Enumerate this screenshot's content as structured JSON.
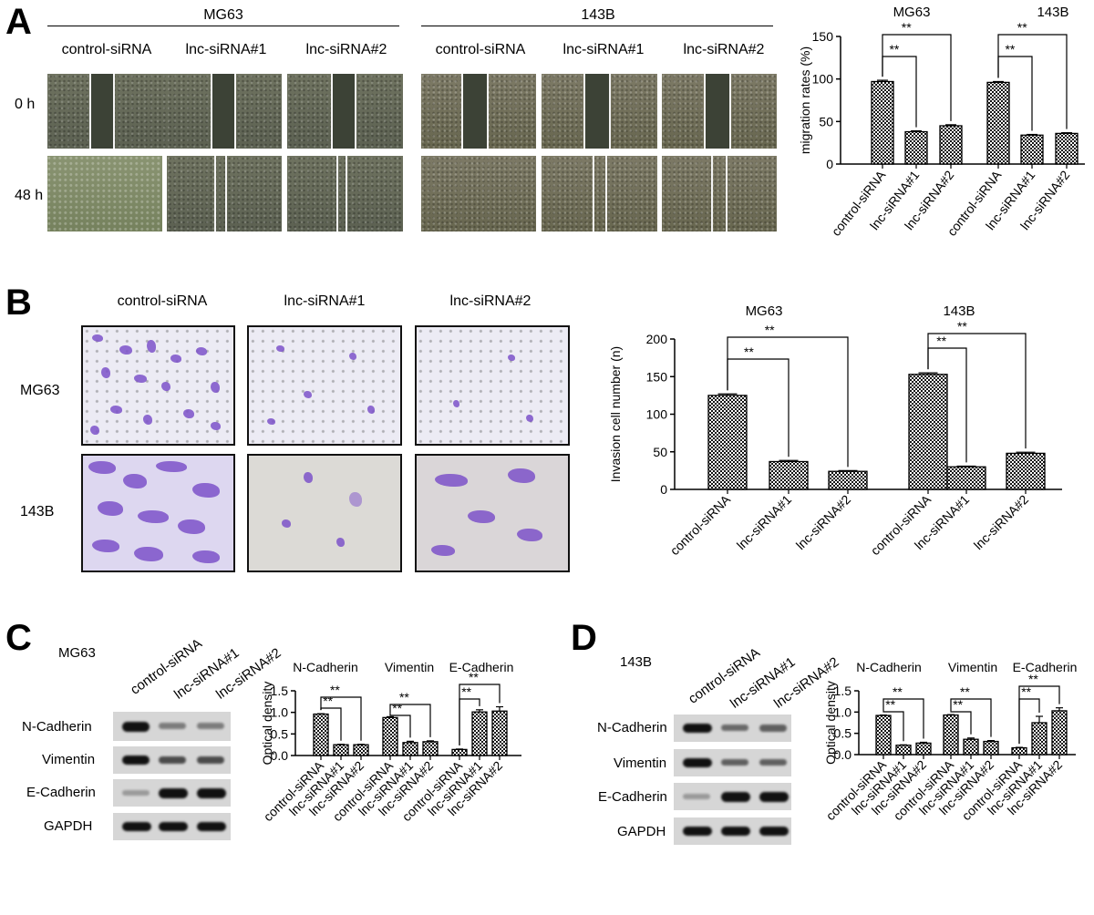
{
  "panels": {
    "a": "A",
    "b": "B",
    "c": "C",
    "d": "D"
  },
  "panelA": {
    "cell_lines": [
      "MG63",
      "143B"
    ],
    "columns": [
      "control-siRNA",
      "lnc-siRNA#1",
      "lnc-siRNA#2",
      "control-siRNA",
      "lnc-siRNA#1",
      "lnc-siRNA#2"
    ],
    "rows": [
      "0 h",
      "48 h"
    ]
  },
  "panelB": {
    "columns": [
      "control-siRNA",
      "lnc-siRNA#1",
      "lnc-siRNA#2"
    ],
    "rows": [
      "MG63",
      "143B"
    ]
  },
  "panelC": {
    "cell_line": "MG63",
    "lanes": [
      "control-siRNA",
      "lnc-siRNA#1",
      "lnc-siRNA#2"
    ],
    "proteins": [
      "N-Cadherin",
      "Vimentin",
      "E-Cadherin",
      "GAPDH"
    ]
  },
  "panelD": {
    "cell_line": "143B",
    "lanes": [
      "control-siRNA",
      "lnc-siRNA#1",
      "lnc-siRNA#2"
    ],
    "proteins": [
      "N-Cadherin",
      "Vimentin",
      "E-Cadherin",
      "GAPDH"
    ]
  },
  "chart_data": [
    {
      "id": "migration",
      "type": "bar",
      "title": "",
      "group_labels": [
        "MG63",
        "143B"
      ],
      "categories": [
        "control-siRNA",
        "lnc-siRNA#1",
        "lnc-siRNA#2",
        "control-siRNA",
        "lnc-siRNA#1",
        "lnc-siRNA#2"
      ],
      "values": [
        97,
        38,
        45,
        96,
        34,
        36
      ],
      "errors": [
        1.5,
        1,
        1.2,
        1,
        0.8,
        0.8
      ],
      "ylabel": "migration rates (%)",
      "ylim": [
        0,
        150
      ],
      "yticks": [
        0,
        50,
        100,
        150
      ],
      "significance": [
        {
          "from": 0,
          "to": 1,
          "label": "**"
        },
        {
          "from": 0,
          "to": 2,
          "label": "**"
        },
        {
          "from": 3,
          "to": 4,
          "label": "**"
        },
        {
          "from": 3,
          "to": 5,
          "label": "**"
        }
      ]
    },
    {
      "id": "invasion",
      "type": "bar",
      "group_labels": [
        "MG63",
        "143B"
      ],
      "categories": [
        "control-siRNA",
        "lnc-siRNA#1",
        "lnc-siRNA#2",
        "control-siRNA",
        "lnc-siRNA#1",
        "lnc-siRNA#2"
      ],
      "values": [
        125,
        37,
        24,
        153,
        30,
        48
      ],
      "errors": [
        2,
        1.5,
        1,
        2,
        1,
        1.5
      ],
      "ylabel": "Invasion cell number (n)",
      "ylim": [
        0,
        200
      ],
      "yticks": [
        0,
        50,
        100,
        150,
        200
      ],
      "significance": [
        {
          "from": 0,
          "to": 1,
          "label": "**"
        },
        {
          "from": 0,
          "to": 2,
          "label": "**"
        },
        {
          "from": 3,
          "to": 4,
          "label": "**"
        },
        {
          "from": 3,
          "to": 5,
          "label": "**"
        }
      ]
    },
    {
      "id": "od_mg63",
      "type": "bar",
      "group_labels": [
        "N-Cadherin",
        "Vimentin",
        "E-Cadherin"
      ],
      "categories": [
        "control-siRNA",
        "lnc-siRNA#1",
        "lnc-siRNA#2",
        "control-siRNA",
        "lnc-siRNA#1",
        "lnc-siRNA#2",
        "control-siRNA",
        "lnc-siRNA#1",
        "lnc-siRNA#2"
      ],
      "values": [
        0.96,
        0.25,
        0.25,
        0.88,
        0.3,
        0.32,
        0.14,
        1.01,
        1.03
      ],
      "errors": [
        0.01,
        0.01,
        0.01,
        0.02,
        0.03,
        0.02,
        0.01,
        0.05,
        0.1
      ],
      "ylabel": "Optical density",
      "ylim": [
        0,
        1.5
      ],
      "yticks": [
        0.0,
        0.5,
        1.0,
        1.5
      ],
      "significance": [
        {
          "from": 0,
          "to": 1,
          "label": "**"
        },
        {
          "from": 0,
          "to": 2,
          "label": "**"
        },
        {
          "from": 3,
          "to": 4,
          "label": "**"
        },
        {
          "from": 3,
          "to": 5,
          "label": "**"
        },
        {
          "from": 6,
          "to": 7,
          "label": "**"
        },
        {
          "from": 6,
          "to": 8,
          "label": "**"
        }
      ]
    },
    {
      "id": "od_143b",
      "type": "bar",
      "group_labels": [
        "N-Cadherin",
        "Vimentin",
        "E-Cadherin"
      ],
      "categories": [
        "control-siRNA",
        "lnc-siRNA#1",
        "lnc-siRNA#2",
        "control-siRNA",
        "lnc-siRNA#1",
        "lnc-siRNA#2",
        "control-siRNA",
        "lnc-siRNA#1",
        "lnc-siRNA#2"
      ],
      "values": [
        0.92,
        0.22,
        0.27,
        0.93,
        0.36,
        0.31,
        0.16,
        0.75,
        1.03
      ],
      "errors": [
        0.01,
        0.01,
        0.02,
        0.01,
        0.03,
        0.02,
        0.01,
        0.15,
        0.07
      ],
      "ylabel": "Optical density",
      "ylim": [
        0,
        1.5
      ],
      "yticks": [
        0.0,
        0.5,
        1.0,
        1.5
      ],
      "significance": [
        {
          "from": 0,
          "to": 1,
          "label": "**"
        },
        {
          "from": 0,
          "to": 2,
          "label": "**"
        },
        {
          "from": 3,
          "to": 4,
          "label": "**"
        },
        {
          "from": 3,
          "to": 5,
          "label": "**"
        },
        {
          "from": 6,
          "to": 7,
          "label": "**"
        },
        {
          "from": 6,
          "to": 8,
          "label": "**"
        }
      ]
    }
  ]
}
